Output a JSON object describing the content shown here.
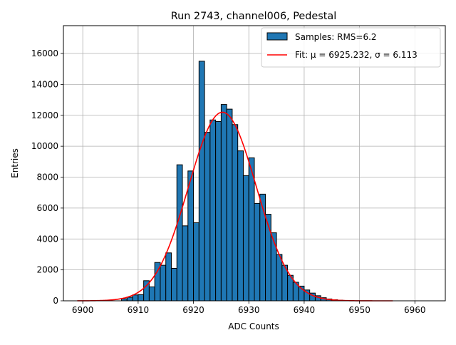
{
  "chart_data": {
    "type": "bar",
    "title": "Run 2743, channel006, Pedestal",
    "xlabel": "ADC Counts",
    "ylabel": "Entries",
    "xlim": [
      6896.5,
      6965.5
    ],
    "ylim": [
      0,
      17800
    ],
    "xticks": [
      6900,
      6910,
      6920,
      6930,
      6940,
      6950,
      6960
    ],
    "yticks": [
      0,
      2000,
      4000,
      6000,
      8000,
      10000,
      12000,
      14000,
      16000
    ],
    "grid": true,
    "legend_position": "top-right",
    "histogram": {
      "name": "Samples: RMS=6.2",
      "color": "#1f77b4",
      "bins": [
        {
          "x0": 6907.0,
          "x1": 6908.0,
          "value": 130
        },
        {
          "x0": 6908.0,
          "x1": 6909.0,
          "value": 230
        },
        {
          "x0": 6909.0,
          "x1": 6910.0,
          "value": 380
        },
        {
          "x0": 6910.0,
          "x1": 6911.0,
          "value": 400
        },
        {
          "x0": 6911.0,
          "x1": 6912.0,
          "value": 1300
        },
        {
          "x0": 6912.0,
          "x1": 6913.0,
          "value": 900
        },
        {
          "x0": 6913.0,
          "x1": 6914.0,
          "value": 2480
        },
        {
          "x0": 6914.0,
          "x1": 6915.0,
          "value": 2300
        },
        {
          "x0": 6915.0,
          "x1": 6916.0,
          "value": 3100
        },
        {
          "x0": 6916.0,
          "x1": 6917.0,
          "value": 2100
        },
        {
          "x0": 6917.0,
          "x1": 6918.0,
          "value": 8800
        },
        {
          "x0": 6918.0,
          "x1": 6919.0,
          "value": 4850
        },
        {
          "x0": 6919.0,
          "x1": 6920.0,
          "value": 8400
        },
        {
          "x0": 6920.0,
          "x1": 6921.0,
          "value": 5050
        },
        {
          "x0": 6921.0,
          "x1": 6922.0,
          "value": 15500
        },
        {
          "x0": 6922.0,
          "x1": 6923.0,
          "value": 10900
        },
        {
          "x0": 6923.0,
          "x1": 6924.0,
          "value": 11700
        },
        {
          "x0": 6924.0,
          "x1": 6925.0,
          "value": 11600
        },
        {
          "x0": 6925.0,
          "x1": 6926.0,
          "value": 12700
        },
        {
          "x0": 6926.0,
          "x1": 6927.0,
          "value": 12400
        },
        {
          "x0": 6927.0,
          "x1": 6928.0,
          "value": 11400
        },
        {
          "x0": 6928.0,
          "x1": 6929.0,
          "value": 9700
        },
        {
          "x0": 6929.0,
          "x1": 6930.0,
          "value": 8100
        },
        {
          "x0": 6930.0,
          "x1": 6931.0,
          "value": 9250
        },
        {
          "x0": 6931.0,
          "x1": 6932.0,
          "value": 6300
        },
        {
          "x0": 6932.0,
          "x1": 6933.0,
          "value": 6900
        },
        {
          "x0": 6933.0,
          "x1": 6934.0,
          "value": 5600
        },
        {
          "x0": 6934.0,
          "x1": 6935.0,
          "value": 4400
        },
        {
          "x0": 6935.0,
          "x1": 6936.0,
          "value": 3000
        },
        {
          "x0": 6936.0,
          "x1": 6937.0,
          "value": 2300
        },
        {
          "x0": 6937.0,
          "x1": 6938.0,
          "value": 1650
        },
        {
          "x0": 6938.0,
          "x1": 6939.0,
          "value": 1200
        },
        {
          "x0": 6939.0,
          "x1": 6940.0,
          "value": 950
        },
        {
          "x0": 6940.0,
          "x1": 6941.0,
          "value": 700
        },
        {
          "x0": 6941.0,
          "x1": 6942.0,
          "value": 500
        },
        {
          "x0": 6942.0,
          "x1": 6943.0,
          "value": 330
        },
        {
          "x0": 6943.0,
          "x1": 6944.0,
          "value": 200
        },
        {
          "x0": 6944.0,
          "x1": 6945.0,
          "value": 120
        },
        {
          "x0": 6945.0,
          "x1": 6946.0,
          "value": 70
        },
        {
          "x0": 6946.0,
          "x1": 6947.0,
          "value": 40
        }
      ]
    },
    "fit": {
      "name": "Fit: μ = 6925.232, σ = 6.113",
      "color": "#ff0000",
      "mu": 6925.232,
      "sigma": 6.113,
      "amplitude": 12200,
      "x_range": [
        6899,
        6956
      ]
    }
  }
}
